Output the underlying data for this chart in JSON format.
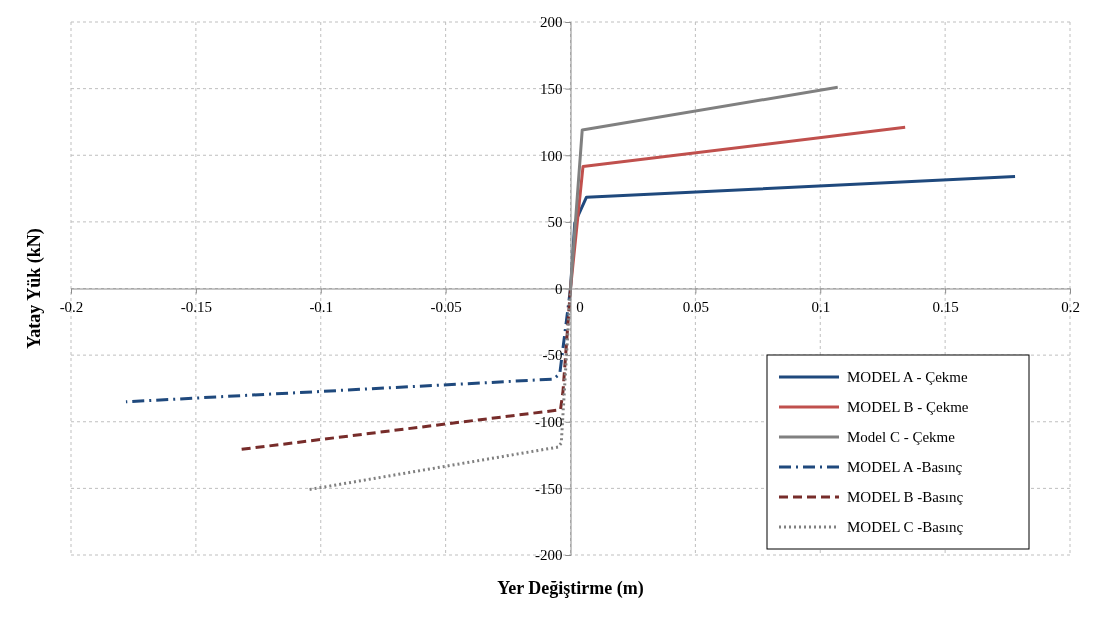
{
  "chart_data": {
    "type": "line",
    "xlabel": "Yer Değiştirme (m)",
    "ylabel": "Yatay Yük (kN)",
    "xlim": [
      -0.2,
      0.2
    ],
    "xticks": [
      -0.2,
      -0.15,
      -0.1,
      -0.05,
      0,
      0.05,
      0.1,
      0.15,
      0.2
    ],
    "ylim": [
      -200,
      200
    ],
    "yticks": [
      -200,
      -150,
      -100,
      -50,
      0,
      50,
      100,
      150,
      200
    ],
    "grid": true,
    "legend": "bottom right",
    "series": [
      {
        "name": "MODEL A - Çekme",
        "color": "#1f497d",
        "line_style": "solid",
        "x": [
          0,
          0.0017,
          0.0064,
          0.178
        ],
        "values": [
          0,
          49,
          68.5,
          84
        ]
      },
      {
        "name": "MODEL B - Çekme",
        "color": "#c0504d",
        "line_style": "solid",
        "x": [
          0,
          0.005,
          0.134
        ],
        "values": [
          0,
          91.5,
          121
        ]
      },
      {
        "name": "Model C - Çekme",
        "color": "#808080",
        "line_style": "solid",
        "x": [
          0,
          0.0047,
          0.107
        ],
        "values": [
          0,
          119,
          151
        ]
      },
      {
        "name": "MODEL A -Basınç",
        "color": "#1f497d",
        "line_style": "dashdot",
        "x": [
          0,
          -0.0043,
          -0.0068,
          -0.178
        ],
        "values": [
          0,
          -64,
          -68,
          -85
        ]
      },
      {
        "name": "MODEL B -Basınç",
        "color": "#772c2a",
        "line_style": "dashed",
        "x": [
          0,
          -0.003,
          -0.004,
          -0.133
        ],
        "values": [
          0,
          -77,
          -91,
          -121
        ]
      },
      {
        "name": "MODEL C -Basınç",
        "color": "#808080",
        "line_style": "dotted",
        "x": [
          0,
          -0.0037,
          -0.005,
          -0.105
        ],
        "values": [
          0,
          -116,
          -119,
          -151
        ]
      }
    ]
  }
}
